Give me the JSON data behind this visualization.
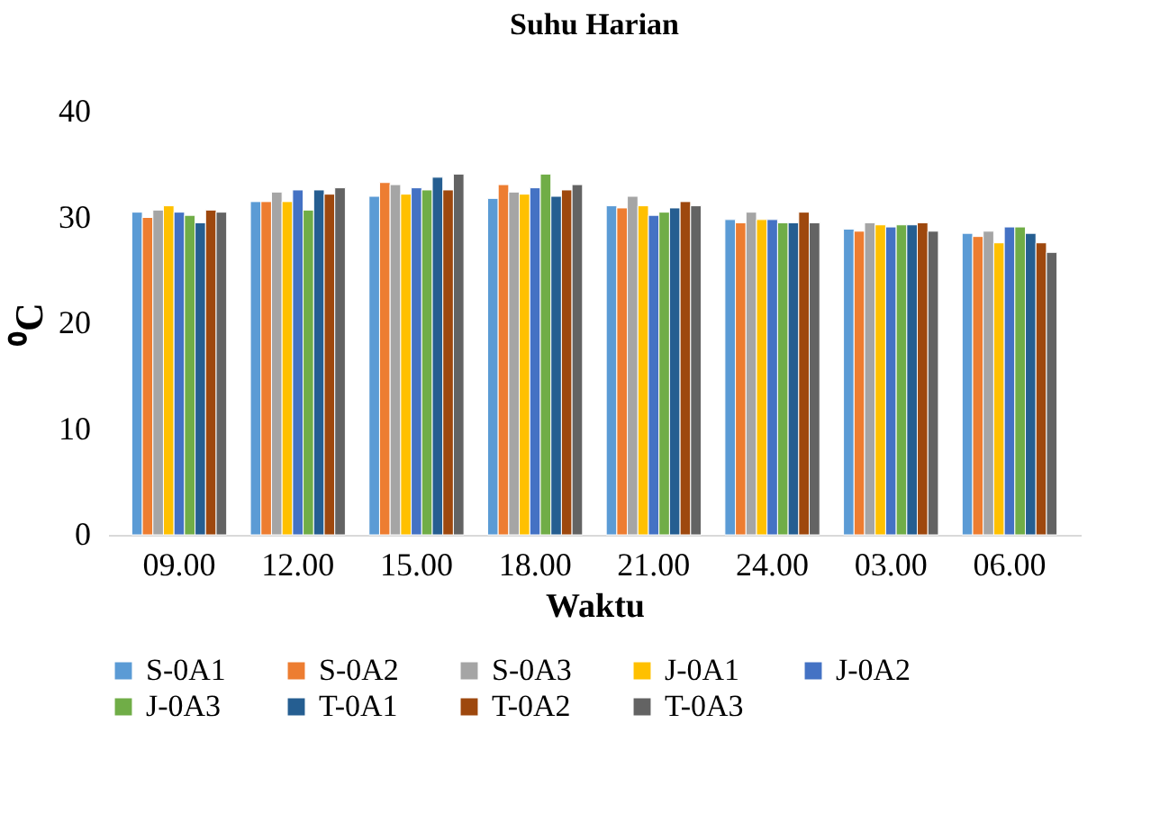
{
  "chart_data": {
    "type": "bar",
    "title": "Suhu Harian",
    "xlabel": "Waktu",
    "ylabel": "⁰C",
    "categories": [
      "09.00",
      "12.00",
      "15.00",
      "18.00",
      "21.00",
      "24.00",
      "03.00",
      "06.00"
    ],
    "ylim": [
      0,
      40
    ],
    "yticks": [
      0,
      10,
      20,
      30,
      40
    ],
    "grid": false,
    "legend": "bottom",
    "series": [
      {
        "name": "S-0A1",
        "color": "#5b9bd5",
        "values": [
          30.5,
          31.5,
          32.0,
          31.8,
          31.1,
          29.8,
          28.9,
          28.5
        ]
      },
      {
        "name": "S-0A2",
        "color": "#ed7d31",
        "values": [
          30.0,
          31.5,
          33.3,
          33.1,
          30.9,
          29.5,
          28.7,
          28.2
        ]
      },
      {
        "name": "S-0A3",
        "color": "#a5a5a5",
        "values": [
          30.7,
          32.4,
          33.1,
          32.4,
          32.0,
          30.5,
          29.5,
          28.7
        ]
      },
      {
        "name": "J-0A1",
        "color": "#ffc000",
        "values": [
          31.1,
          31.5,
          32.2,
          32.2,
          31.1,
          29.8,
          29.3,
          27.6
        ]
      },
      {
        "name": "J-0A2",
        "color": "#4472c4",
        "values": [
          30.5,
          32.6,
          32.8,
          32.8,
          30.2,
          29.8,
          29.1,
          29.1
        ]
      },
      {
        "name": "J-0A3",
        "color": "#70ad47",
        "values": [
          30.2,
          30.7,
          32.6,
          34.1,
          30.5,
          29.5,
          29.3,
          29.1
        ]
      },
      {
        "name": "T-0A1",
        "color": "#255e91",
        "values": [
          29.5,
          32.6,
          33.8,
          32.0,
          30.9,
          29.5,
          29.3,
          28.5
        ]
      },
      {
        "name": "T-0A2",
        "color": "#9e480e",
        "values": [
          30.7,
          32.2,
          32.6,
          32.6,
          31.5,
          30.5,
          29.5,
          27.6
        ]
      },
      {
        "name": "T-0A3",
        "color": "#636363",
        "values": [
          30.5,
          32.8,
          34.1,
          33.1,
          31.1,
          29.5,
          28.7,
          26.7
        ]
      }
    ]
  }
}
